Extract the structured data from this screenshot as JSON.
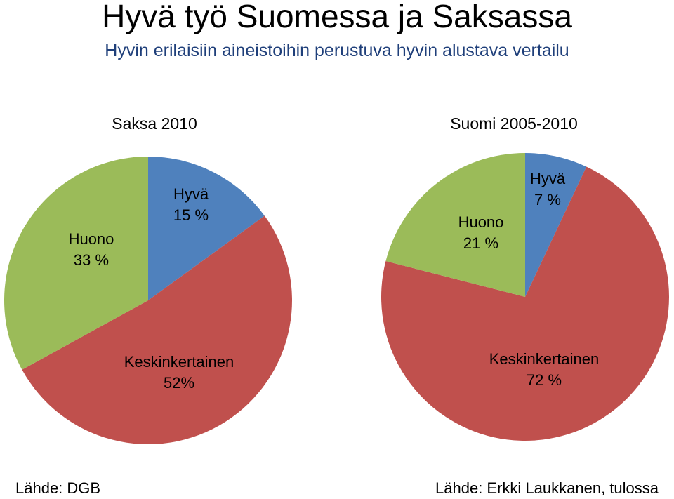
{
  "header": {
    "title": "Hyvä työ Suomessa ja Saksassa",
    "subtitle": "Hyvin erilaisiin aineistoihin perustuva hyvin alustava vertailu"
  },
  "chart_data": [
    {
      "type": "pie",
      "title": "Saksa 2010",
      "slices": [
        {
          "name": "Hyvä",
          "value": 15,
          "label": "15 %",
          "color": "#4f81bd"
        },
        {
          "name": "Keskinkertainen",
          "value": 52,
          "label": "52%",
          "color": "#c0504d"
        },
        {
          "name": "Huono",
          "value": 33,
          "label": "33 %",
          "color": "#9bbb59"
        }
      ],
      "source": "Lähde: DGB"
    },
    {
      "type": "pie",
      "title": "Suomi 2005-2010",
      "slices": [
        {
          "name": "Hyvä",
          "value": 7,
          "label": "7 %",
          "color": "#4f81bd"
        },
        {
          "name": "Keskinkertainen",
          "value": 72,
          "label": "72 %",
          "color": "#c0504d"
        },
        {
          "name": "Huono",
          "value": 21,
          "label": "21 %",
          "color": "#9bbb59"
        }
      ],
      "source": "Lähde: Erkki Laukkanen, tulossa"
    }
  ]
}
